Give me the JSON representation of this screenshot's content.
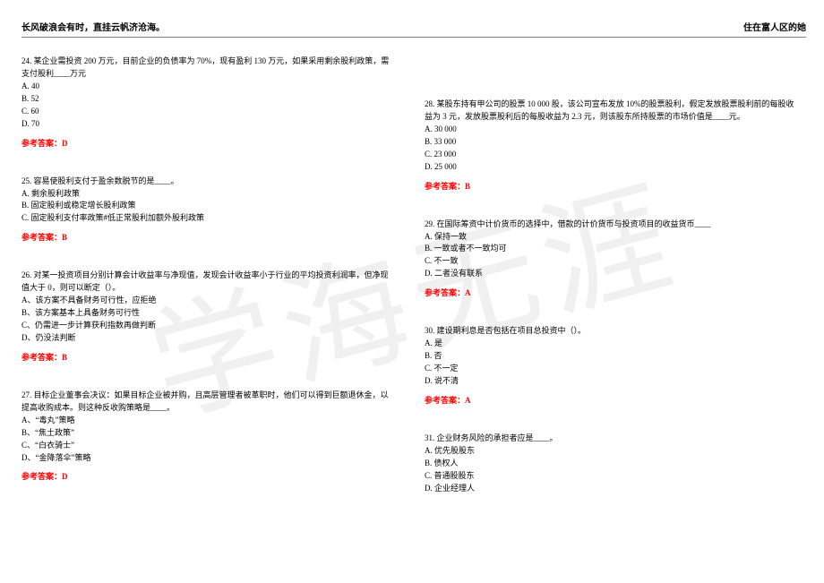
{
  "header": {
    "left": "长风破浪会有时，直挂云帆济沧海。",
    "right": "住在富人区的她"
  },
  "watermark": "学海无涯",
  "answer_label": "参考答案：",
  "left_questions": [
    {
      "stem_lines": [
        "24. 某企业需投资 200 万元，目前企业的负债率为 70%，现有盈利 130 万元，如果采用剩余股利政策，需",
        "支付股利____万元"
      ],
      "options": [
        "A. 40",
        "B. 52",
        "C. 60",
        "D. 70"
      ],
      "answer": "D"
    },
    {
      "stem_lines": [
        "25. 容易使股利支付于盈余数脱节的是____。"
      ],
      "options": [
        "A. 剩余股利政策",
        "B. 固定股利或稳定增长股利政策",
        "C. 固定股利支付率政策#低正常股利加额外股利政策"
      ],
      "answer": "B"
    },
    {
      "stem_lines": [
        "26. 对某一投资项目分别计算会计收益率与净现值，发现会计收益率小于行业的平均投资利润率，但净现",
        "值大于 0，则可以断定（）。"
      ],
      "options": [
        "A、该方案不具备财务可行性，应拒绝",
        "B、该方案基本上具备财务可行性",
        "C、仍需进一步计算获利指数再做判断",
        "D、仍没法判断"
      ],
      "answer": "B"
    },
    {
      "stem_lines": [
        "27. 目标企业董事会决议：如果目标企业被并购，且高层管理者被革职时，他们可以得到巨额退休金，以",
        "提高收购成本。则这种反收购策略是____。"
      ],
      "options": [
        "A、“毒丸”策略",
        "B、“焦土政策”",
        "C、“白衣骑士”",
        "D、“金降落伞”策略"
      ],
      "answer": "D"
    }
  ],
  "right_questions": [
    {
      "stem_lines": [
        "28. 某股东持有甲公司的股票 10 000 股，该公司宣布发放 10%的股票股利，假定发放股票股利前的每股收",
        "益为 3 元，发放股票股利后的每股收益为 2.3 元，则该股东所持股票的市场价值是____元。"
      ],
      "options": [
        "A. 30 000",
        "B. 33 000",
        "C. 23 000",
        "D. 25 000"
      ],
      "answer": "B"
    },
    {
      "stem_lines": [
        "29. 在国际筹资中计价货币的选择中，借款的计价货币与投资项目的收益货币____"
      ],
      "options": [
        "A. 保持一致",
        "B. 一致或者不一致均可",
        "C. 不一致",
        "D. 二者没有联系"
      ],
      "answer": "A"
    },
    {
      "stem_lines": [
        "30. 建设期利息是否包括在项目总投资中（）。"
      ],
      "options": [
        "A. 是",
        "B. 否",
        "C. 不一定",
        "D. 说不清"
      ],
      "answer": "A"
    },
    {
      "stem_lines": [
        "31. 企业财务风险的承担者应是____。"
      ],
      "options": [
        "A. 优先股股东",
        "B. 债权人",
        "C. 普通股股东",
        "D. 企业经理人"
      ],
      "answer": ""
    }
  ]
}
